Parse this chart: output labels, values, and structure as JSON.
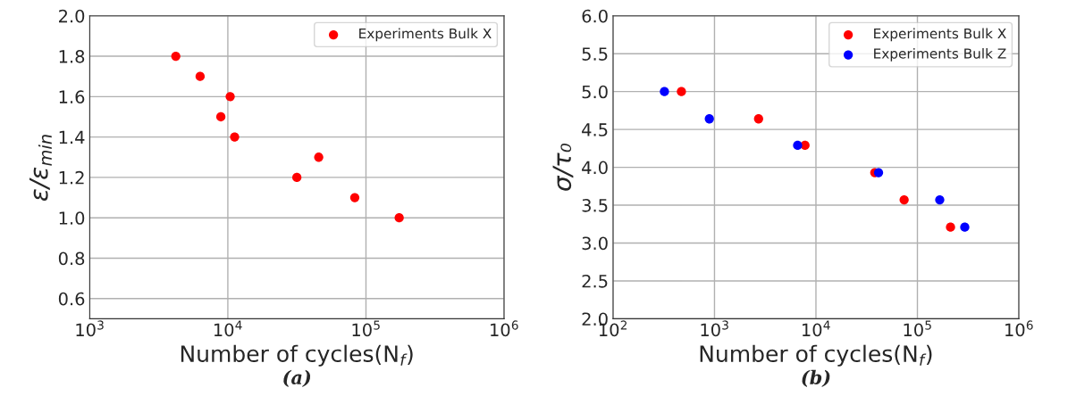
{
  "chart_data": [
    {
      "type": "scatter",
      "xlabel": "Number of cycles(N$_{f}$)",
      "ylabel": "ε/ε$_{min}$",
      "log": "x",
      "grid": true,
      "legend": "top right",
      "marker": "circle",
      "xlim": [
        1000,
        1000000
      ],
      "xticks": [
        {
          "value": 1000,
          "label": "10$^{3}$"
        },
        {
          "value": 10000,
          "label": "10$^{4}$"
        },
        {
          "value": 100000,
          "label": "10$^{5}$"
        },
        {
          "value": 1000000,
          "label": "10$^{6}$"
        }
      ],
      "ylim": [
        0.5,
        2.0
      ],
      "yticks": [
        {
          "value": 0.6,
          "label": "0.6"
        },
        {
          "value": 0.8,
          "label": "0.8"
        },
        {
          "value": 1.0,
          "label": "1.0"
        },
        {
          "value": 1.2,
          "label": "1.2"
        },
        {
          "value": 1.4,
          "label": "1.4"
        },
        {
          "value": 1.6,
          "label": "1.6"
        },
        {
          "value": 1.8,
          "label": "1.8"
        },
        {
          "value": 2.0,
          "label": "2.0"
        }
      ],
      "series": [
        {
          "name": "Experiments Bulk X",
          "color": "#ff0000",
          "x": [
            4200,
            6300,
            10400,
            8900,
            11200,
            31600,
            45500,
            83000,
            174000
          ],
          "values": [
            1.8,
            1.7,
            1.6,
            1.5,
            1.4,
            1.2,
            1.3,
            1.1,
            1.0
          ]
        }
      ],
      "annotations": [
        "(a)"
      ]
    },
    {
      "type": "scatter",
      "xlabel": "Number of cycles(N$_{f}$)",
      "ylabel": "σ/τ₀",
      "log": "x",
      "grid": true,
      "legend": "top right",
      "marker": "circle",
      "xlim": [
        100,
        1000000
      ],
      "xticks": [
        {
          "value": 100,
          "label": "10$^{2}$"
        },
        {
          "value": 1000,
          "label": "10$^{3}$"
        },
        {
          "value": 10000,
          "label": "10$^{4}$"
        },
        {
          "value": 100000,
          "label": "10$^{5}$"
        },
        {
          "value": 1000000,
          "label": "10$^{6}$"
        }
      ],
      "ylim": [
        2.0,
        6.0
      ],
      "yticks": [
        {
          "value": 2.0,
          "label": "2.0"
        },
        {
          "value": 2.5,
          "label": "2.5"
        },
        {
          "value": 3.0,
          "label": "3.0"
        },
        {
          "value": 3.5,
          "label": "3.5"
        },
        {
          "value": 4.0,
          "label": "4.0"
        },
        {
          "value": 4.5,
          "label": "4.5"
        },
        {
          "value": 5.0,
          "label": "5.0"
        },
        {
          "value": 5.5,
          "label": "5.5"
        },
        {
          "value": 6.0,
          "label": "6.0"
        }
      ],
      "series": [
        {
          "name": "Experiments Bulk X",
          "color": "#ff0000",
          "x": [
            472,
            2720,
            7800,
            38000,
            74000,
            212000
          ],
          "values": [
            5.0,
            4.64,
            4.29,
            3.93,
            3.57,
            3.21
          ]
        },
        {
          "name": "Experiments Bulk Z",
          "color": "#0000ff",
          "x": [
            321,
            890,
            6600,
            41400,
            166000,
            293000
          ],
          "values": [
            5.0,
            4.64,
            4.29,
            3.93,
            3.57,
            3.21
          ]
        }
      ],
      "annotations": [
        "(b)"
      ]
    }
  ]
}
